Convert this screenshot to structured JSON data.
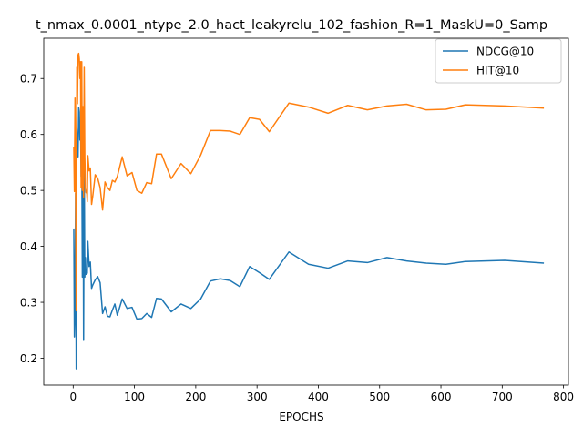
{
  "chart_data": {
    "type": "line",
    "title": "t_nmax_0.0001_ntype_2.0_hact_leakyrelu_102_fashion_R=1_MaskU=0_Samp",
    "xlabel": "EPOCHS",
    "ylabel": "",
    "xlim": [
      -48,
      808
    ],
    "ylim": [
      0.152,
      0.772
    ],
    "xticks": [
      0,
      100,
      200,
      300,
      400,
      500,
      600,
      700,
      800
    ],
    "yticks": [
      0.2,
      0.3,
      0.4,
      0.5,
      0.6,
      0.7
    ],
    "grid": false,
    "legend_position": "upper right",
    "series": [
      {
        "name": "NDCG@10",
        "color": "#1f77b4",
        "x": [
          1,
          2,
          3,
          4,
          5,
          6,
          7,
          8,
          9,
          10,
          11,
          12,
          13,
          14,
          15,
          16,
          17,
          18,
          19,
          20,
          21,
          22,
          23,
          24,
          26,
          28,
          30,
          32,
          36,
          40,
          44,
          48,
          52,
          56,
          60,
          64,
          68,
          72,
          80,
          88,
          96,
          104,
          112,
          120,
          128,
          136,
          144,
          160,
          176,
          192,
          208,
          224,
          240,
          256,
          272,
          288,
          304,
          320,
          352,
          384,
          416,
          448,
          480,
          512,
          544,
          576,
          608,
          640,
          704,
          768
        ],
        "y": [
          0.432,
          0.238,
          0.282,
          0.495,
          0.181,
          0.61,
          0.582,
          0.56,
          0.648,
          0.64,
          0.59,
          0.62,
          0.525,
          0.581,
          0.345,
          0.63,
          0.232,
          0.555,
          0.345,
          0.38,
          0.35,
          0.352,
          0.352,
          0.409,
          0.364,
          0.372,
          0.325,
          0.331,
          0.34,
          0.346,
          0.335,
          0.28,
          0.292,
          0.275,
          0.274,
          0.286,
          0.297,
          0.277,
          0.306,
          0.289,
          0.291,
          0.27,
          0.271,
          0.28,
          0.273,
          0.307,
          0.306,
          0.283,
          0.297,
          0.289,
          0.306,
          0.338,
          0.342,
          0.339,
          0.328,
          0.364,
          0.353,
          0.341,
          0.39,
          0.368,
          0.361,
          0.374,
          0.371,
          0.38,
          0.374,
          0.37,
          0.368,
          0.373,
          0.375,
          0.37
        ]
      },
      {
        "name": "HIT@10",
        "color": "#ff7f0e",
        "x": [
          1,
          2,
          3,
          4,
          5,
          6,
          7,
          8,
          9,
          10,
          11,
          12,
          13,
          14,
          15,
          16,
          17,
          18,
          19,
          20,
          21,
          22,
          23,
          24,
          26,
          28,
          30,
          32,
          36,
          40,
          44,
          48,
          52,
          56,
          60,
          64,
          68,
          72,
          80,
          88,
          96,
          104,
          112,
          120,
          128,
          136,
          144,
          160,
          176,
          192,
          208,
          224,
          240,
          256,
          272,
          288,
          304,
          320,
          352,
          384,
          416,
          448,
          480,
          512,
          544,
          576,
          608,
          640,
          704,
          768
        ],
        "y": [
          0.578,
          0.498,
          0.665,
          0.51,
          0.285,
          0.72,
          0.655,
          0.742,
          0.745,
          0.735,
          0.7,
          0.73,
          0.505,
          0.73,
          0.5,
          0.65,
          0.488,
          0.72,
          0.56,
          0.505,
          0.496,
          0.5,
          0.48,
          0.562,
          0.535,
          0.54,
          0.475,
          0.49,
          0.528,
          0.522,
          0.505,
          0.465,
          0.515,
          0.505,
          0.5,
          0.518,
          0.515,
          0.525,
          0.56,
          0.526,
          0.532,
          0.5,
          0.495,
          0.514,
          0.512,
          0.565,
          0.565,
          0.521,
          0.548,
          0.53,
          0.563,
          0.607,
          0.607,
          0.606,
          0.6,
          0.63,
          0.627,
          0.605,
          0.656,
          0.649,
          0.638,
          0.652,
          0.644,
          0.651,
          0.654,
          0.644,
          0.645,
          0.653,
          0.651,
          0.647
        ]
      }
    ]
  }
}
